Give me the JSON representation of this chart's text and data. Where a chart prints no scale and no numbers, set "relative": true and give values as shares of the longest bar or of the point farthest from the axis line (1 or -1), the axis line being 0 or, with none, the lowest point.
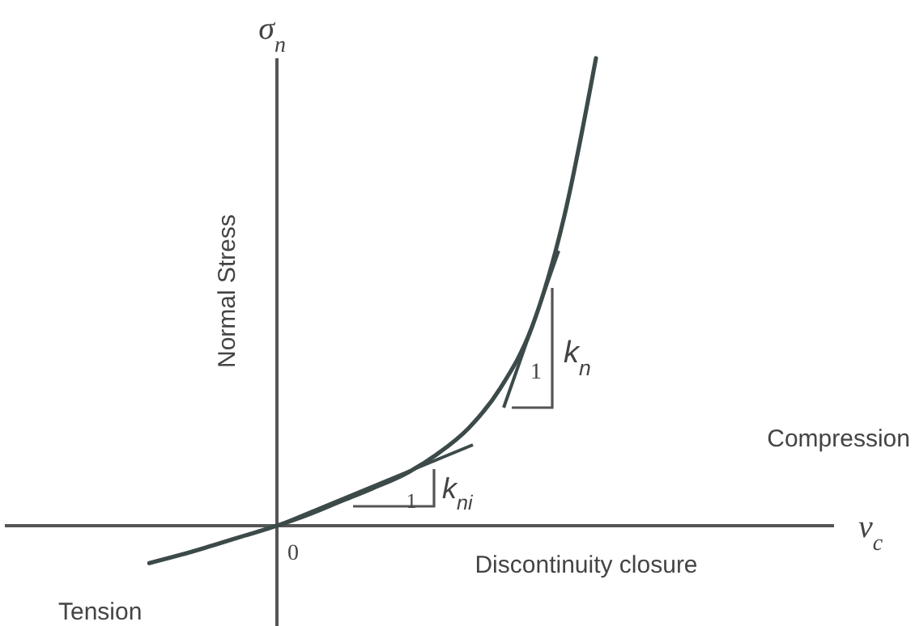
{
  "chart_data": {
    "type": "line",
    "relative": true,
    "xlabel": "Discontinuity closure",
    "ylabel": "Normal Stress",
    "categories": [
      null,
      null,
      null,
      null,
      null,
      null,
      null,
      null,
      null,
      null,
      null,
      null,
      null,
      null,
      null,
      null,
      null,
      null,
      null,
      null,
      null,
      null,
      null,
      null,
      null,
      null
    ],
    "values": [
      null,
      null,
      null,
      null,
      -0.08,
      -0.062,
      -0.042,
      -0.021,
      0,
      0.024,
      0.052,
      0.08,
      0.11,
      0.152,
      0.208,
      0.294,
      0.426,
      0.66,
      1,
      null,
      null,
      null,
      null,
      null,
      null,
      null
    ],
    "color": "#3d4a4a",
    "annotations": [
      "σ$_{n}$",
      "v$_{c}$",
      "0",
      "Compression",
      "Tension",
      "k$_{n}$",
      "1",
      "k$_{ni}$",
      "1"
    ]
  }
}
